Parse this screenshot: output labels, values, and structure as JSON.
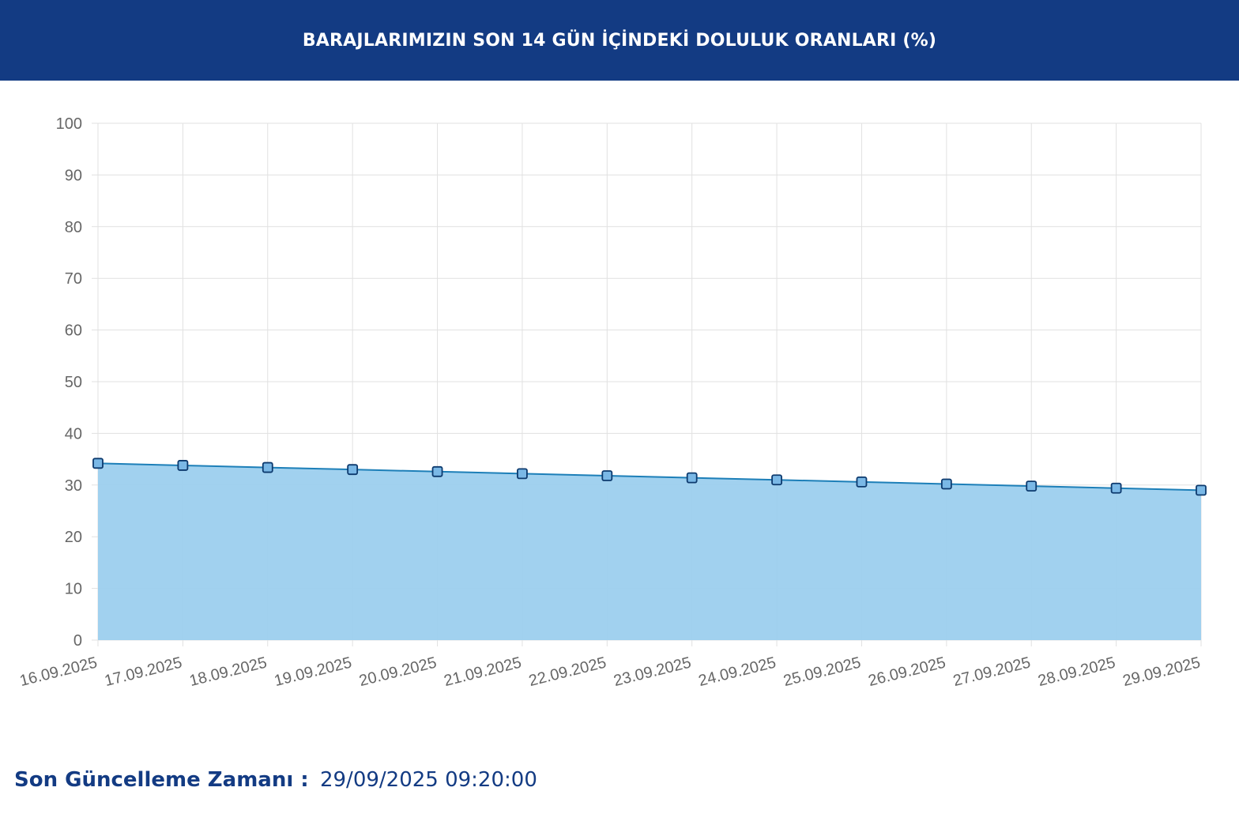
{
  "header": {
    "title": "BARAJLARIMIZIN SON 14 GÜN İÇİNDEKİ DOLULUK ORANLARI (%)"
  },
  "colors": {
    "header_bg": "#133b83",
    "fill": "#9ccfee",
    "line": "#1d7fb8",
    "marker_fill": "#7ab8e6",
    "marker_stroke": "#0d3a6e",
    "grid": "#e1e1e1",
    "tick_text": "#666666",
    "footer_text": "#133b83"
  },
  "chart_data": {
    "type": "area",
    "title": "BARAJLARIMIZIN SON 14 GÜN İÇİNDEKİ DOLULUK ORANLARI (%)",
    "xlabel": "",
    "ylabel": "",
    "ylim": [
      0,
      100
    ],
    "yticks": [
      "0",
      "10",
      "20",
      "30",
      "40",
      "50",
      "60",
      "70",
      "80",
      "90",
      "100"
    ],
    "grid": true,
    "legend": "none",
    "categories": [
      "16.09.2025",
      "17.09.2025",
      "18.09.2025",
      "19.09.2025",
      "20.09.2025",
      "21.09.2025",
      "22.09.2025",
      "23.09.2025",
      "24.09.2025",
      "25.09.2025",
      "26.09.2025",
      "27.09.2025",
      "28.09.2025",
      "29.09.2025"
    ],
    "values": [
      34.2,
      33.8,
      33.4,
      33.0,
      32.6,
      32.2,
      31.8,
      31.4,
      31.0,
      30.6,
      30.2,
      29.8,
      29.4,
      29.0
    ]
  },
  "footer": {
    "label": "Son Güncelleme Zamanı :",
    "value": "29/09/2025 09:20:00"
  }
}
